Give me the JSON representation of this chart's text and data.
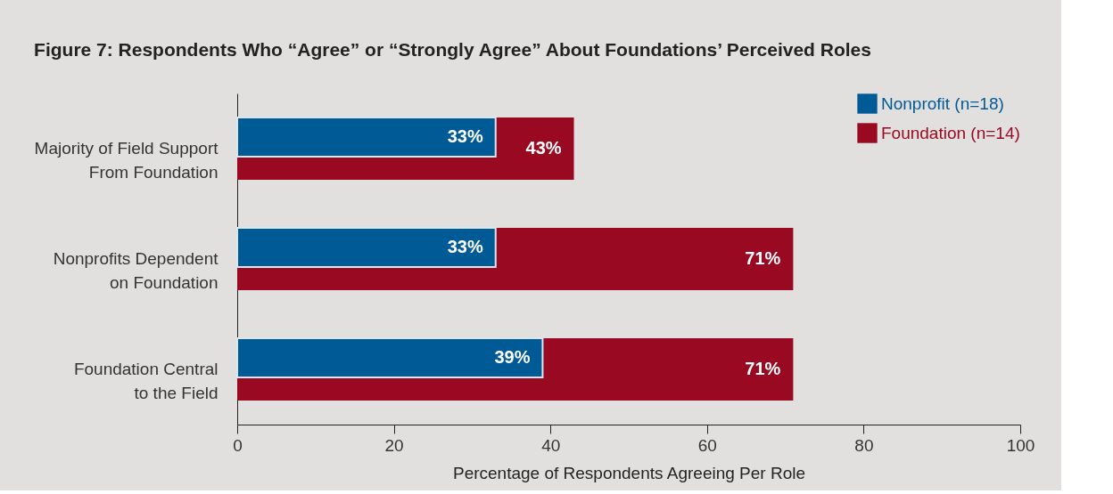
{
  "chart_data": {
    "type": "bar",
    "orientation": "horizontal",
    "title": "Figure 7: Respondents Who “Agree” or “Strongly Agree” About Foundations’ Perceived Roles",
    "xlabel": "Percentage of Respondents Agreeing Per Role",
    "categories": [
      "Majority of Field Support\nFrom Foundation",
      "Nonprofits Dependent\non Foundation",
      "Foundation Central\nto the Field"
    ],
    "series": [
      {
        "name": "Nonprofit (n=18)",
        "color": "#005a96",
        "values": [
          33,
          33,
          39
        ],
        "value_labels": [
          "33%",
          "33%",
          "39%"
        ]
      },
      {
        "name": "Foundation (n=14)",
        "color": "#990a22",
        "values": [
          43,
          71,
          71
        ],
        "value_labels": [
          "43%",
          "71%",
          "71%"
        ]
      }
    ],
    "xlim": [
      0,
      100
    ],
    "xticks": [
      0,
      20,
      40,
      60,
      80,
      100
    ],
    "legend": "top right"
  }
}
